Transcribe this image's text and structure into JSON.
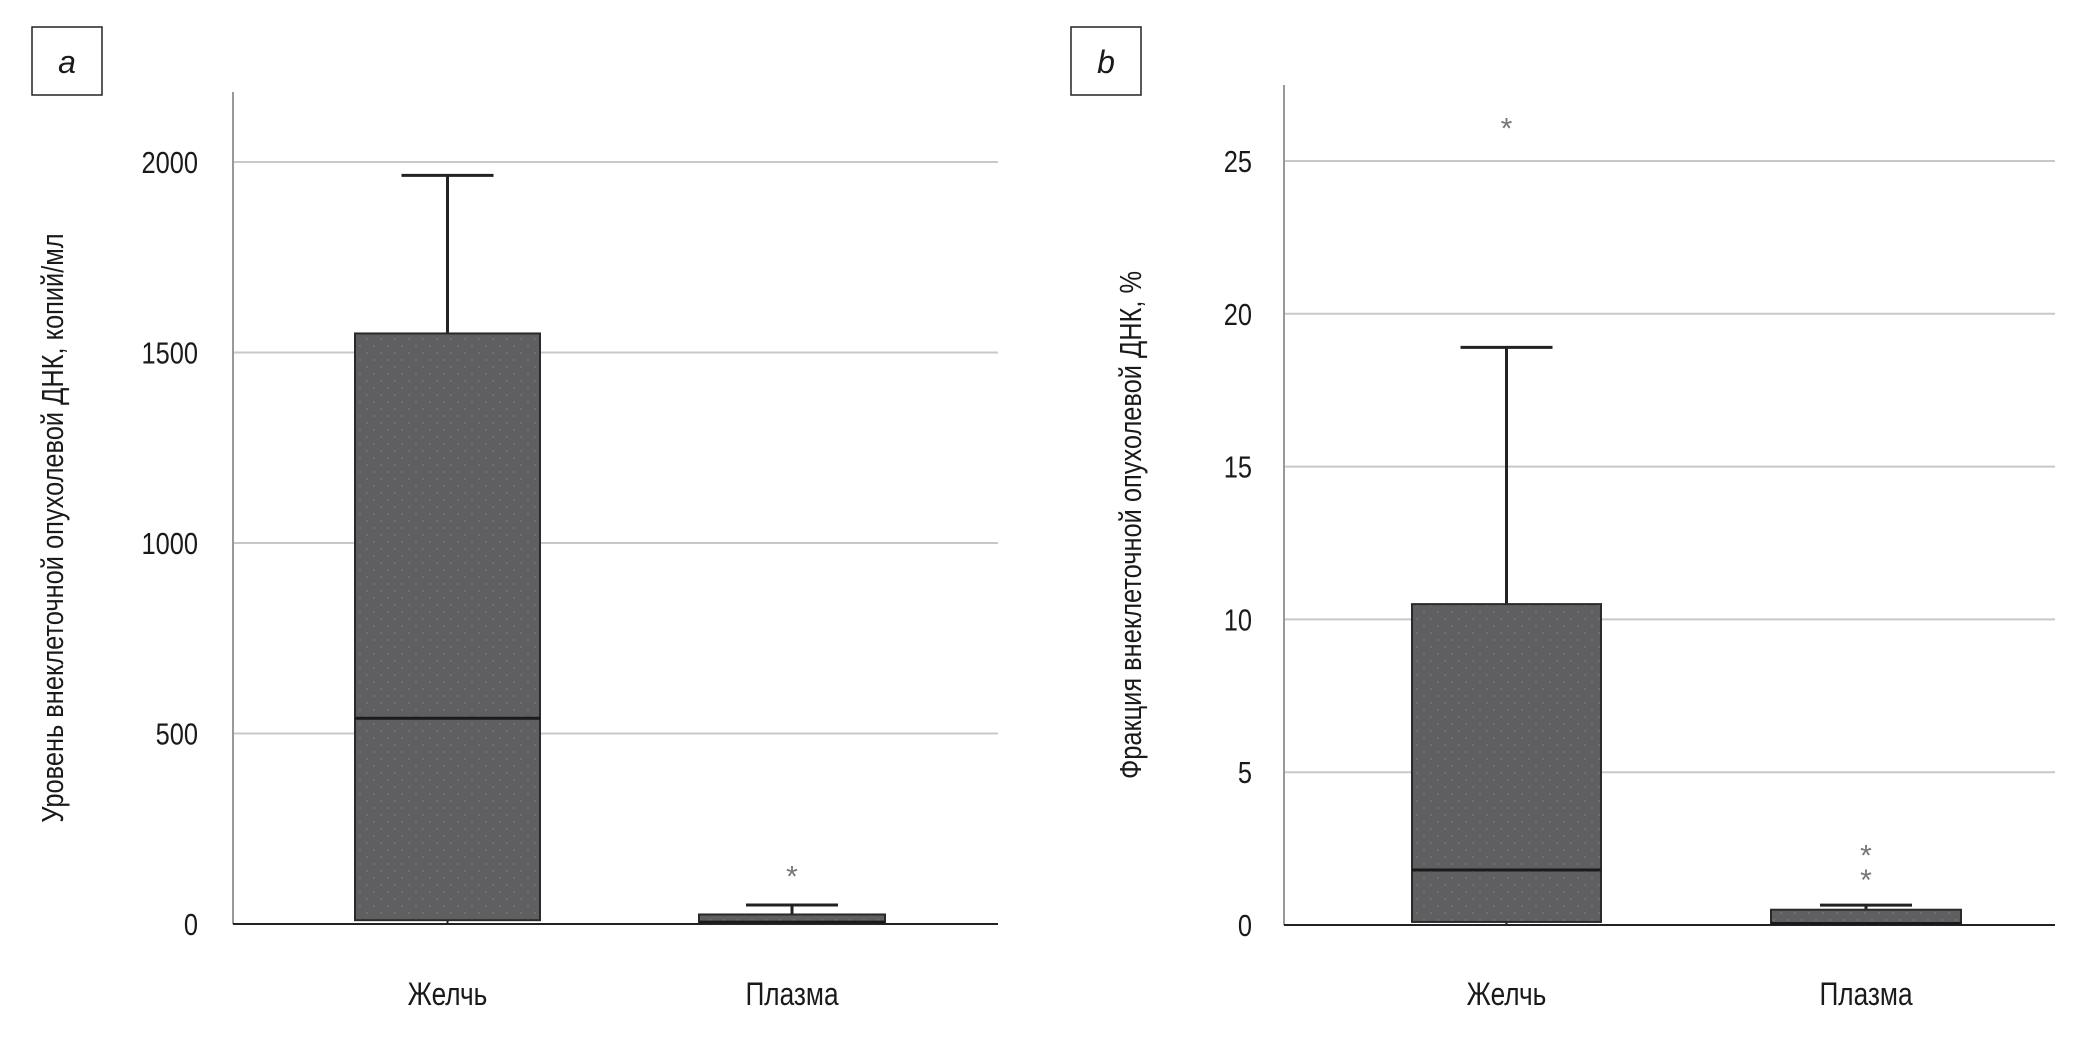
{
  "chart_data": [
    {
      "type": "box",
      "panel_label": "a",
      "ylabel": "Уровень внеклеточной опухолевой ДНК, копий/мл",
      "xlabel": "",
      "ylim": [
        0,
        2180
      ],
      "yticks": [
        0,
        500,
        1000,
        1500,
        2000
      ],
      "ytick_labels": [
        "0",
        "500",
        "1000",
        "1500",
        "2000"
      ],
      "grid": true,
      "categories": [
        "Желчь",
        "Плазма"
      ],
      "boxes": [
        {
          "name": "Желчь",
          "min": 0,
          "q1": 10,
          "median": 540,
          "q3": 1550,
          "max": 1965,
          "outliers": []
        },
        {
          "name": "Плазма",
          "min": 0,
          "q1": 1,
          "median": 5,
          "q3": 25,
          "max": 50,
          "outliers": [
            135
          ]
        }
      ]
    },
    {
      "type": "box",
      "panel_label": "b",
      "ylabel": "Фракция внеклеточной опухолевой ДНК, %",
      "xlabel": "",
      "ylim": [
        0,
        27.5
      ],
      "yticks": [
        0,
        5,
        10,
        15,
        20,
        25
      ],
      "ytick_labels": [
        "0",
        "5",
        "10",
        "15",
        "20",
        "25"
      ],
      "grid": true,
      "categories": [
        "Желчь",
        "Плазма"
      ],
      "boxes": [
        {
          "name": "Желчь",
          "min": 0,
          "q1": 0.1,
          "median": 1.8,
          "q3": 10.5,
          "max": 18.9,
          "outliers": [
            26.2
          ]
        },
        {
          "name": "Плазма",
          "min": 0,
          "q1": 0.05,
          "median": 0.05,
          "q3": 0.5,
          "max": 0.65,
          "outliers": [
            1.6,
            2.4
          ]
        }
      ]
    }
  ],
  "colors": {
    "box_fill": "#5f5e60",
    "box_edge": "#2a2a2a",
    "grid": "#c8c8c8",
    "outlier": "#777777"
  }
}
